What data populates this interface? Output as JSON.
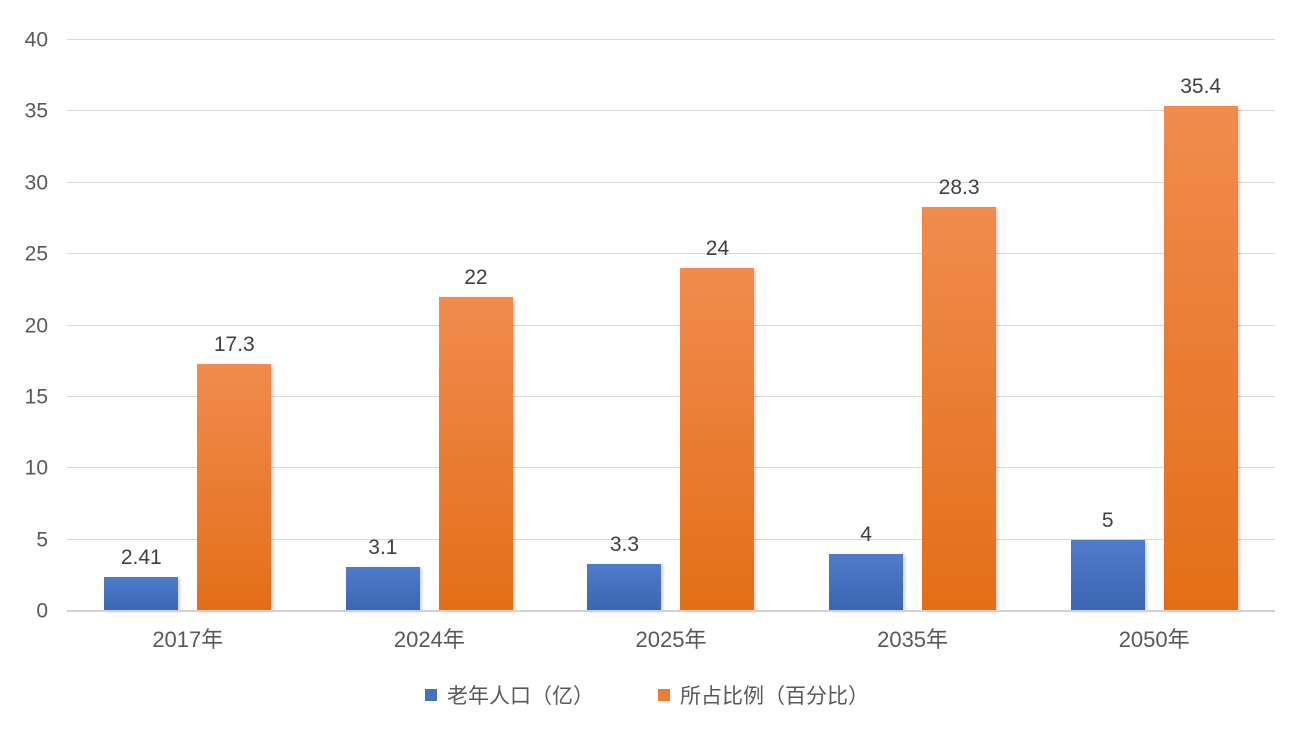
{
  "chart_data": {
    "type": "bar",
    "title": "",
    "categories": [
      "2017年",
      "2024年",
      "2025年",
      "2035年",
      "2050年"
    ],
    "series": [
      {
        "name": "老年人口（亿）",
        "values": [
          2.41,
          3.1,
          3.3,
          4,
          5
        ],
        "labels": [
          "2.41",
          "3.1",
          "3.3",
          "4",
          "5"
        ],
        "color": "#4472C4",
        "gradient_top": "#4e7ccb",
        "gradient_bottom": "#3a66b2"
      },
      {
        "name": "所占比例（百分比）",
        "values": [
          17.3,
          22,
          24,
          28.3,
          35.4
        ],
        "labels": [
          "17.3",
          "22",
          "24",
          "28.3",
          "35.4"
        ],
        "color": "#ED7D31",
        "gradient_top": "#f18b4e",
        "gradient_bottom": "#e36e17"
      }
    ],
    "xlabel": "",
    "ylabel": "",
    "ylim": [
      0,
      40
    ],
    "yticks": [
      0,
      5,
      10,
      15,
      20,
      25,
      30,
      35,
      40
    ],
    "grid": true,
    "gridline_color": "#d9d9d9",
    "axis_text_color": "#595959",
    "data_label_color": "#404040",
    "legend_position": "bottom"
  }
}
